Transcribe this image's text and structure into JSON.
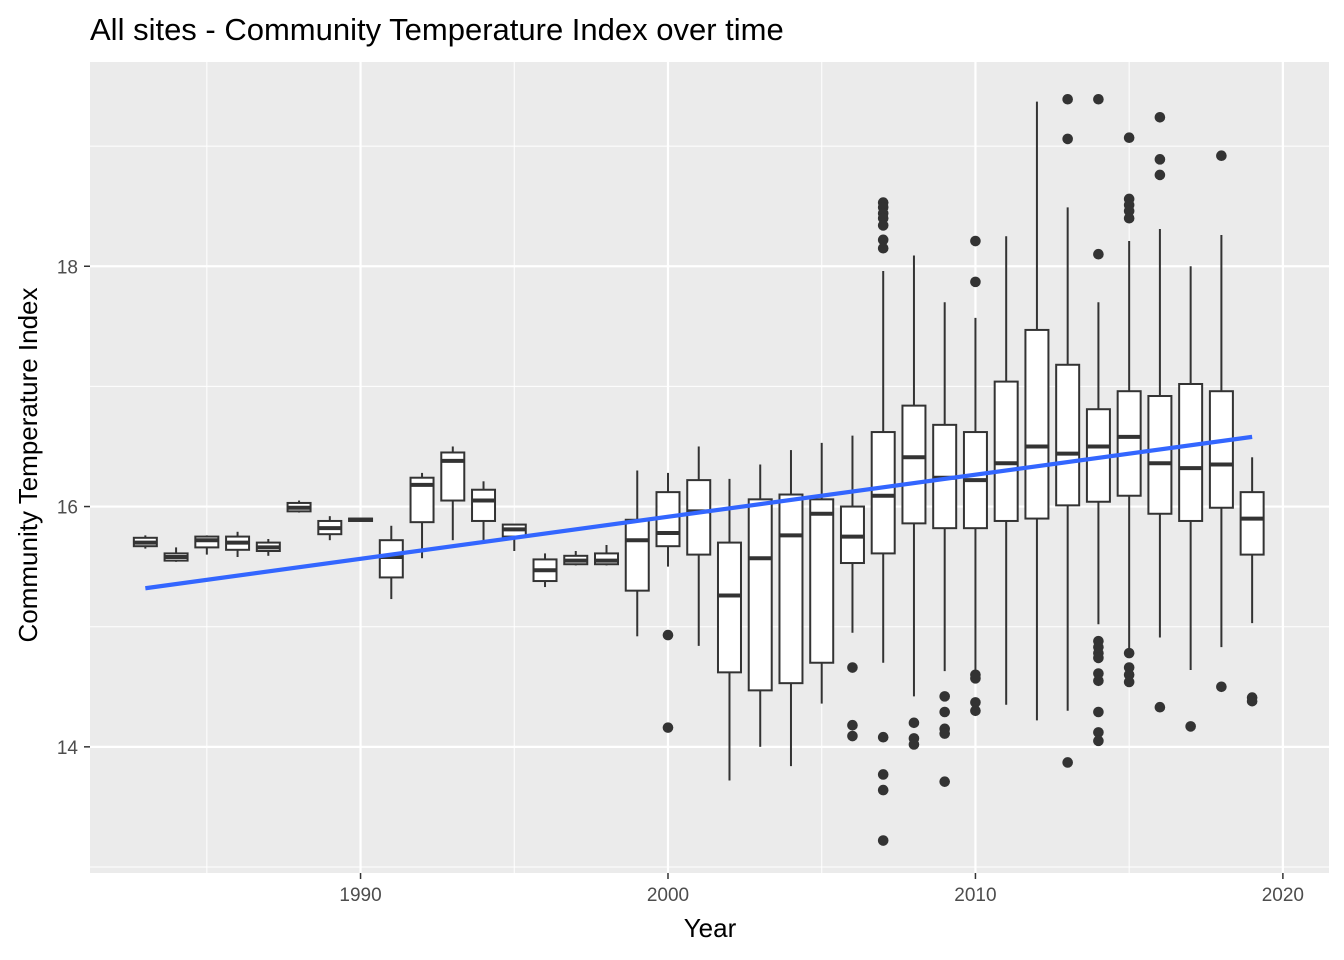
{
  "chart_data": {
    "type": "boxplot",
    "title": "All sites - Community Temperature Index over time",
    "xlabel": "Year",
    "ylabel": "Community Temperature Index",
    "xlim": [
      1981.2,
      2021.5
    ],
    "ylim": [
      12.95,
      19.7
    ],
    "x_ticks": [
      1990,
      2000,
      2010,
      2020
    ],
    "y_ticks": [
      14,
      16,
      18
    ],
    "grid": true,
    "colors": {
      "panel": "#ebebeb",
      "grid_major": "#ffffff",
      "box_line": "#333333",
      "box_fill": "#ffffff",
      "trend": "#3366ff"
    },
    "boxes": [
      {
        "year": 1983,
        "min": 15.65,
        "q1": 15.67,
        "median": 15.7,
        "q3": 15.74,
        "max": 15.76,
        "outliers": []
      },
      {
        "year": 1984,
        "min": 15.54,
        "q1": 15.55,
        "median": 15.58,
        "q3": 15.61,
        "max": 15.66,
        "outliers": []
      },
      {
        "year": 1985,
        "min": 15.6,
        "q1": 15.66,
        "median": 15.72,
        "q3": 15.75,
        "max": 15.76,
        "outliers": []
      },
      {
        "year": 1986,
        "min": 15.58,
        "q1": 15.64,
        "median": 15.7,
        "q3": 15.75,
        "max": 15.79,
        "outliers": []
      },
      {
        "year": 1987,
        "min": 15.59,
        "q1": 15.63,
        "median": 15.66,
        "q3": 15.7,
        "max": 15.73,
        "outliers": []
      },
      {
        "year": 1988,
        "min": 15.95,
        "q1": 15.96,
        "median": 15.99,
        "q3": 16.03,
        "max": 16.05,
        "outliers": []
      },
      {
        "year": 1989,
        "min": 15.72,
        "q1": 15.77,
        "median": 15.82,
        "q3": 15.88,
        "max": 15.92,
        "outliers": []
      },
      {
        "year": 1990,
        "min": 15.88,
        "q1": 15.88,
        "median": 15.89,
        "q3": 15.9,
        "max": 15.9,
        "outliers": []
      },
      {
        "year": 1991,
        "min": 15.23,
        "q1": 15.41,
        "median": 15.58,
        "q3": 15.72,
        "max": 15.84,
        "outliers": []
      },
      {
        "year": 1992,
        "min": 15.57,
        "q1": 15.87,
        "median": 16.18,
        "q3": 16.24,
        "max": 16.28,
        "outliers": []
      },
      {
        "year": 1993,
        "min": 15.72,
        "q1": 16.05,
        "median": 16.38,
        "q3": 16.45,
        "max": 16.5,
        "outliers": []
      },
      {
        "year": 1994,
        "min": 15.7,
        "q1": 15.88,
        "median": 16.05,
        "q3": 16.14,
        "max": 16.21,
        "outliers": []
      },
      {
        "year": 1995,
        "min": 15.63,
        "q1": 15.75,
        "median": 15.81,
        "q3": 15.85,
        "max": 15.85,
        "outliers": []
      },
      {
        "year": 1996,
        "min": 15.33,
        "q1": 15.38,
        "median": 15.47,
        "q3": 15.56,
        "max": 15.61,
        "outliers": []
      },
      {
        "year": 1997,
        "min": 15.51,
        "q1": 15.52,
        "median": 15.55,
        "q3": 15.59,
        "max": 15.63,
        "outliers": []
      },
      {
        "year": 1998,
        "min": 15.51,
        "q1": 15.52,
        "median": 15.55,
        "q3": 15.61,
        "max": 15.68,
        "outliers": []
      },
      {
        "year": 1999,
        "min": 14.92,
        "q1": 15.3,
        "median": 15.72,
        "q3": 15.89,
        "max": 16.3,
        "outliers": []
      },
      {
        "year": 2000,
        "min": 15.5,
        "q1": 15.67,
        "median": 15.78,
        "q3": 16.12,
        "max": 16.28,
        "outliers": [
          14.93,
          14.16
        ]
      },
      {
        "year": 2001,
        "min": 14.84,
        "q1": 15.6,
        "median": 15.96,
        "q3": 16.22,
        "max": 16.5,
        "outliers": []
      },
      {
        "year": 2002,
        "min": 13.72,
        "q1": 14.62,
        "median": 15.26,
        "q3": 15.7,
        "max": 16.23,
        "outliers": []
      },
      {
        "year": 2003,
        "min": 14.0,
        "q1": 14.47,
        "median": 15.57,
        "q3": 16.06,
        "max": 16.35,
        "outliers": []
      },
      {
        "year": 2004,
        "min": 13.84,
        "q1": 14.53,
        "median": 15.76,
        "q3": 16.1,
        "max": 16.47,
        "outliers": []
      },
      {
        "year": 2005,
        "min": 14.36,
        "q1": 14.7,
        "median": 15.94,
        "q3": 16.06,
        "max": 16.53,
        "outliers": []
      },
      {
        "year": 2006,
        "min": 14.95,
        "q1": 15.53,
        "median": 15.75,
        "q3": 16.0,
        "max": 16.59,
        "outliers": [
          14.66,
          14.18,
          14.09
        ]
      },
      {
        "year": 2007,
        "min": 14.7,
        "q1": 15.61,
        "median": 16.09,
        "q3": 16.62,
        "max": 17.96,
        "outliers": [
          18.53,
          18.49,
          18.44,
          18.4,
          18.34,
          18.22,
          18.15,
          14.08,
          13.77,
          13.64,
          13.22
        ]
      },
      {
        "year": 2008,
        "min": 14.42,
        "q1": 15.86,
        "median": 16.41,
        "q3": 16.84,
        "max": 18.09,
        "outliers": [
          14.2,
          14.07,
          14.02
        ]
      },
      {
        "year": 2009,
        "min": 14.63,
        "q1": 15.82,
        "median": 16.24,
        "q3": 16.68,
        "max": 17.7,
        "outliers": [
          14.42,
          14.29,
          14.15,
          14.11,
          13.71
        ]
      },
      {
        "year": 2010,
        "min": 14.61,
        "q1": 15.82,
        "median": 16.22,
        "q3": 16.62,
        "max": 17.57,
        "outliers": [
          18.21,
          17.87,
          14.6,
          14.57,
          14.37,
          14.3
        ]
      },
      {
        "year": 2011,
        "min": 14.35,
        "q1": 15.88,
        "median": 16.36,
        "q3": 17.04,
        "max": 18.25,
        "outliers": []
      },
      {
        "year": 2012,
        "min": 14.22,
        "q1": 15.9,
        "median": 16.5,
        "q3": 17.47,
        "max": 19.37,
        "outliers": []
      },
      {
        "year": 2013,
        "min": 14.3,
        "q1": 16.01,
        "median": 16.44,
        "q3": 17.18,
        "max": 18.49,
        "outliers": [
          19.39,
          19.06,
          13.87
        ]
      },
      {
        "year": 2014,
        "min": 15.02,
        "q1": 16.04,
        "median": 16.5,
        "q3": 16.81,
        "max": 17.7,
        "outliers": [
          19.39,
          18.1,
          14.88,
          14.83,
          14.78,
          14.74,
          14.61,
          14.55,
          14.29,
          14.12,
          14.05
        ]
      },
      {
        "year": 2015,
        "min": 14.8,
        "q1": 16.09,
        "median": 16.58,
        "q3": 16.96,
        "max": 18.21,
        "outliers": [
          19.07,
          18.56,
          18.51,
          18.46,
          18.4,
          14.78,
          14.66,
          14.6,
          14.54
        ]
      },
      {
        "year": 2016,
        "min": 14.91,
        "q1": 15.94,
        "median": 16.36,
        "q3": 16.92,
        "max": 18.31,
        "outliers": [
          19.24,
          18.89,
          18.76,
          14.33
        ]
      },
      {
        "year": 2017,
        "min": 14.64,
        "q1": 15.88,
        "median": 16.32,
        "q3": 17.02,
        "max": 18.0,
        "outliers": [
          14.17
        ]
      },
      {
        "year": 2018,
        "min": 14.83,
        "q1": 15.99,
        "median": 16.35,
        "q3": 16.96,
        "max": 18.26,
        "outliers": [
          18.92,
          14.5
        ]
      },
      {
        "year": 2019,
        "min": 15.03,
        "q1": 15.6,
        "median": 15.9,
        "q3": 16.12,
        "max": 16.41,
        "outliers": [
          14.41,
          14.38
        ]
      }
    ],
    "trend": {
      "x": [
        1983,
        2019
      ],
      "y": [
        15.32,
        16.58
      ]
    }
  }
}
